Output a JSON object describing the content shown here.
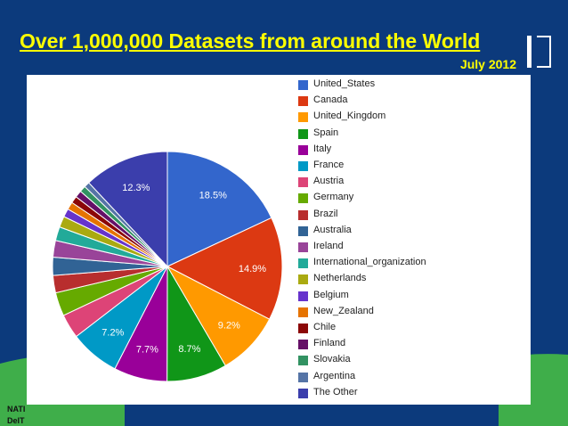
{
  "slide": {
    "title": "Over 1,000,000 Datasets from around the World",
    "subtitle": "July 2012",
    "footer_line1": "NATI",
    "footer_line2": "DelT"
  },
  "chart_data": {
    "type": "pie",
    "legend_position": "right",
    "slices": [
      {
        "label": "United_States",
        "value": 18.5,
        "color": "#3366cc",
        "data_label": "18.5%"
      },
      {
        "label": "Canada",
        "value": 14.9,
        "color": "#dc3912",
        "data_label": "14.9%"
      },
      {
        "label": "United_Kingdom",
        "value": 9.2,
        "color": "#ff9900",
        "data_label": "9.2%"
      },
      {
        "label": "Spain",
        "value": 8.7,
        "color": "#109618",
        "data_label": "8.7%"
      },
      {
        "label": "Italy",
        "value": 7.7,
        "color": "#990099",
        "data_label": "7.7%"
      },
      {
        "label": "France",
        "value": 7.2,
        "color": "#0099c6",
        "data_label": "7.2%"
      },
      {
        "label": "Austria",
        "value": 3.5,
        "color": "#dd4477",
        "data_label": ""
      },
      {
        "label": "Germany",
        "value": 3.4,
        "color": "#66aa00",
        "data_label": ""
      },
      {
        "label": "Brazil",
        "value": 2.5,
        "color": "#b82e2e",
        "data_label": ""
      },
      {
        "label": "Australia",
        "value": 2.6,
        "color": "#316395",
        "data_label": ""
      },
      {
        "label": "Ireland",
        "value": 2.4,
        "color": "#994499",
        "data_label": ""
      },
      {
        "label": "International_organization",
        "value": 2.0,
        "color": "#22aa99",
        "data_label": ""
      },
      {
        "label": "Netherlands",
        "value": 1.6,
        "color": "#aaaa11",
        "data_label": ""
      },
      {
        "label": "Belgium",
        "value": 1.2,
        "color": "#6633cc",
        "data_label": ""
      },
      {
        "label": "New_Zealand",
        "value": 1.1,
        "color": "#e67300",
        "data_label": ""
      },
      {
        "label": "Chile",
        "value": 1.0,
        "color": "#8b0707",
        "data_label": ""
      },
      {
        "label": "Finland",
        "value": 1.0,
        "color": "#651067",
        "data_label": ""
      },
      {
        "label": "Slovakia",
        "value": 0.9,
        "color": "#329262",
        "data_label": ""
      },
      {
        "label": "Argentina",
        "value": 0.8,
        "color": "#5574a6",
        "data_label": ""
      },
      {
        "label": "The Other",
        "value": 12.3,
        "color": "#3b3eac",
        "data_label": "12.3%"
      }
    ]
  }
}
